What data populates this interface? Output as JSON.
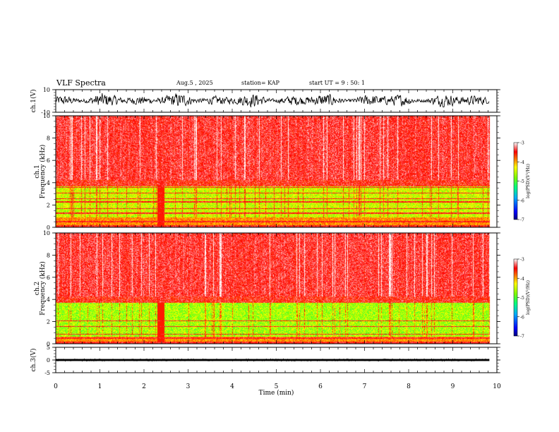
{
  "header": {
    "title": "VLF Spectra",
    "date": "Aug.5 , 2025",
    "station": "station= KAP",
    "start": "start UT = 9 : 50: 1"
  },
  "chart_data": [
    {
      "type": "line",
      "id": "ch1-waveform",
      "ylabel": "ch.1(V)",
      "ylim": [
        -10,
        10
      ],
      "yticks": [
        {
          "value": 10,
          "label": "10"
        },
        {
          "value": -10,
          "label": "-10"
        }
      ],
      "xlim": [
        0,
        10
      ],
      "x_extent": 9.83,
      "description_values": {
        "typical_min": -5,
        "typical_max": 6
      }
    },
    {
      "type": "heatmap",
      "id": "ch1-spectrogram",
      "ylabel_line1": "ch.1",
      "ylabel_line2": "Frequency (kHz)",
      "ylim": [
        0,
        10
      ],
      "yticks": [
        {
          "value": 0,
          "label": "0"
        },
        {
          "value": 2,
          "label": "2"
        },
        {
          "value": 4,
          "label": "4"
        },
        {
          "value": 6,
          "label": "6"
        },
        {
          "value": 8,
          "label": "8"
        },
        {
          "value": 10,
          "label": "10"
        }
      ],
      "xlim": [
        0,
        10
      ],
      "x_extent": 9.83,
      "colorbar": {
        "label": "log(PSD)(V²/Hz)",
        "range": [
          -7,
          -3
        ],
        "ticks": [
          {
            "value": -3,
            "label": "-3"
          },
          {
            "value": -4,
            "label": "-4"
          },
          {
            "value": -5,
            "label": "-5"
          },
          {
            "value": -6,
            "label": "-6"
          },
          {
            "value": -7,
            "label": "-7"
          }
        ]
      }
    },
    {
      "type": "heatmap",
      "id": "ch2-spectrogram",
      "ylabel_line1": "ch.2",
      "ylabel_line2": "Frequency (kHz)",
      "ylim": [
        0,
        10
      ],
      "yticks": [
        {
          "value": 0,
          "label": "0"
        },
        {
          "value": 2,
          "label": "2"
        },
        {
          "value": 4,
          "label": "4"
        },
        {
          "value": 6,
          "label": "6"
        },
        {
          "value": 8,
          "label": "8"
        },
        {
          "value": 10,
          "label": "10"
        }
      ],
      "xlim": [
        0,
        10
      ],
      "x_extent": 9.83,
      "colorbar": {
        "label": "log(PSD)(V²/Hz)",
        "range": [
          -7,
          -3
        ],
        "ticks": [
          {
            "value": -3,
            "label": "-3"
          },
          {
            "value": -4,
            "label": "-4"
          },
          {
            "value": -5,
            "label": "-5"
          },
          {
            "value": -6,
            "label": "-6"
          },
          {
            "value": -7,
            "label": "-7"
          }
        ]
      }
    },
    {
      "type": "line",
      "id": "ch3-waveform",
      "ylabel": "ch.3(V)",
      "ylim": [
        -5,
        5
      ],
      "yticks": [
        {
          "value": 5,
          "label": "5"
        },
        {
          "value": 0,
          "label": "0"
        },
        {
          "value": -5,
          "label": "-5"
        }
      ],
      "xlim": [
        0,
        10
      ],
      "x_extent": 9.83,
      "description_values": {
        "band_min": -0.4,
        "band_max": 0.4
      }
    }
  ],
  "x_axis": {
    "label": "Time (min)",
    "ticks": [
      {
        "value": 0,
        "label": "0"
      },
      {
        "value": 1,
        "label": "1"
      },
      {
        "value": 2,
        "label": "2"
      },
      {
        "value": 3,
        "label": "3"
      },
      {
        "value": 4,
        "label": "4"
      },
      {
        "value": 5,
        "label": "5"
      },
      {
        "value": 6,
        "label": "6"
      },
      {
        "value": 7,
        "label": "7"
      },
      {
        "value": 8,
        "label": "8"
      },
      {
        "value": 9,
        "label": "9"
      },
      {
        "value": 10,
        "label": "10"
      }
    ]
  },
  "colors": {
    "axis": "#000000",
    "background": "#ffffff"
  }
}
